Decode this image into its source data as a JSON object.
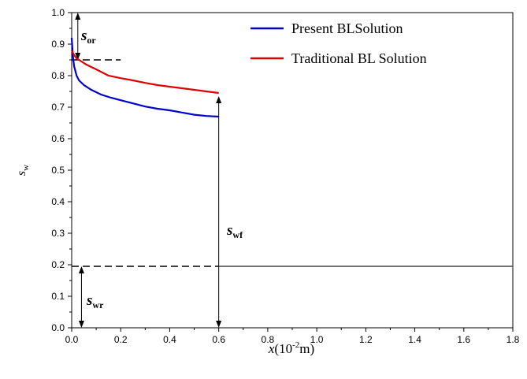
{
  "chart_data": {
    "type": "line",
    "xlabel": {
      "var": "x",
      "rest": "(10",
      "sup": "-2",
      "unit": "m)"
    },
    "ylabel": {
      "var": "s",
      "sub": "w"
    },
    "xlim": [
      0,
      1.8
    ],
    "ylim": [
      0,
      1.0
    ],
    "x_ticks": [
      "0.0",
      "0.2",
      "0.4",
      "0.6",
      "0.8",
      "1.0",
      "1.2",
      "1.4",
      "1.6",
      "1.8"
    ],
    "y_ticks": [
      "0.0",
      "0.1",
      "0.2",
      "0.3",
      "0.4",
      "0.5",
      "0.6",
      "0.7",
      "0.8",
      "0.9",
      "1.0"
    ],
    "legend_position": "top-right",
    "series": [
      {
        "name": "Present BLSolution",
        "color": "#0000cc",
        "x": [
          0.0,
          0.005,
          0.01,
          0.02,
          0.03,
          0.05,
          0.08,
          0.12,
          0.16,
          0.2,
          0.25,
          0.3,
          0.35,
          0.4,
          0.45,
          0.5,
          0.55,
          0.6,
          0.6
        ],
        "y": [
          0.92,
          0.86,
          0.83,
          0.8,
          0.785,
          0.77,
          0.755,
          0.74,
          0.73,
          0.722,
          0.712,
          0.702,
          0.695,
          0.69,
          0.683,
          0.676,
          0.672,
          0.67,
          0.195
        ],
        "right": [
          0.6,
          1.8
        ],
        "right_y": 0.195
      },
      {
        "name": "Traditional BL Solution",
        "color": "#dd0000",
        "x": [
          0.0,
          0.01,
          0.02,
          0.04,
          0.06,
          0.1,
          0.15,
          0.2,
          0.25,
          0.3,
          0.35,
          0.4,
          0.45,
          0.5,
          0.55,
          0.6,
          0.6
        ],
        "y": [
          0.88,
          0.865,
          0.855,
          0.845,
          0.835,
          0.82,
          0.8,
          0.792,
          0.785,
          0.777,
          0.77,
          0.765,
          0.76,
          0.755,
          0.75,
          0.745,
          0.195
        ]
      }
    ],
    "annotations": {
      "sor": {
        "label": "s",
        "sub": "or",
        "y_top": 1.0,
        "y_bottom": 0.85
      },
      "swf": {
        "label": "s",
        "sub": "wf",
        "y_top": 0.735,
        "y_bottom": 0.0,
        "x": 0.6
      },
      "swr": {
        "label": "s",
        "sub": "wr",
        "y_top": 0.195,
        "y_bottom": 0.0,
        "x": 0.04
      },
      "dashed_or": {
        "y": 0.85,
        "x_end": 0.2
      },
      "dashed_wr": {
        "y": 0.195,
        "x_end": 0.6
      }
    }
  }
}
